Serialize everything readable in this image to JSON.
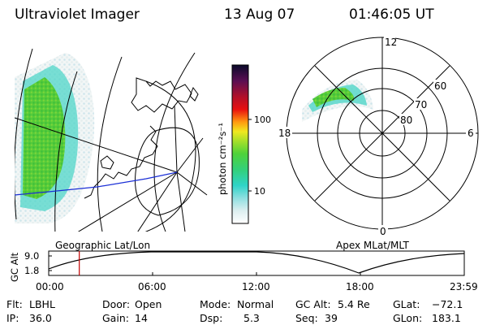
{
  "header": {
    "instrument": "Ultraviolet Imager",
    "date": "13 Aug 07",
    "time": "01:46:05 UT"
  },
  "colorbar": {
    "unit_label": "photon cm⁻²s⁻¹",
    "ticks": [
      "100",
      "10"
    ]
  },
  "polar_plot": {
    "label_12": "12",
    "label_18": "18",
    "label_6": "6",
    "label_0": "0",
    "lat_60": "60",
    "lat_70": "70",
    "lat_80": "80"
  },
  "map_caption": "Geographic Lat/Lon",
  "polar_caption": "Apex MLat/MLT",
  "timeline": {
    "ylabel": "GC Alt",
    "ytick_top": "9.0",
    "ytick_bottom": "1.8",
    "xticks": [
      "00:00",
      "06:00",
      "12:00",
      "18:00",
      "23:59"
    ],
    "marker_time": "01:46",
    "line_color": "#c00000"
  },
  "info": {
    "filter_label": "Flt:",
    "filter_value": "LBHL",
    "ip_label": "IP:",
    "ip_value": "36.0",
    "door_label": "Door:",
    "door_value": "Open",
    "gain_label": "Gain:",
    "gain_value": "14",
    "mode_label": "Mode:",
    "mode_value": "Normal",
    "dsp_label": "Dsp:",
    "dsp_value": "5.3",
    "gcalt_label": "GC Alt:",
    "gcalt_value": "5.4 Re",
    "seq_label": "Seq:",
    "seq_value": "39",
    "glat_label": "GLat:",
    "glat_value": "−72.1",
    "glon_label": "GLon:",
    "glon_value": "183.1"
  }
}
